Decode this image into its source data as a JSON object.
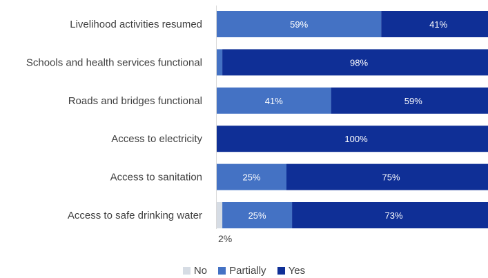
{
  "chart_data": {
    "type": "bar",
    "orientation": "horizontal",
    "stacked": true,
    "categories": [
      "Livelihood activities resumed",
      "Schools and health services functional",
      "Roads and bridges functional",
      "Access to electricity",
      "Access to sanitation",
      "Access to safe drinking water"
    ],
    "series": [
      {
        "name": "No",
        "color": "#D6DCE4",
        "values": [
          0,
          0,
          0,
          0,
          0,
          2
        ],
        "labels": [
          "",
          "",
          "",
          "",
          "",
          "2%"
        ]
      },
      {
        "name": "Partially",
        "color": "#4472C4",
        "values": [
          59,
          2,
          41,
          0,
          25,
          25
        ],
        "labels": [
          "59%",
          "2%",
          "41%",
          "",
          "25%",
          "25%"
        ]
      },
      {
        "name": "Yes",
        "color": "#0F2F96",
        "values": [
          41,
          98,
          59,
          100,
          75,
          73
        ],
        "labels": [
          "41%",
          "98%",
          "59%",
          "100%",
          "75%",
          "73%"
        ]
      }
    ],
    "xlim": [
      0,
      100
    ],
    "legend_position": "bottom",
    "grid": false
  }
}
